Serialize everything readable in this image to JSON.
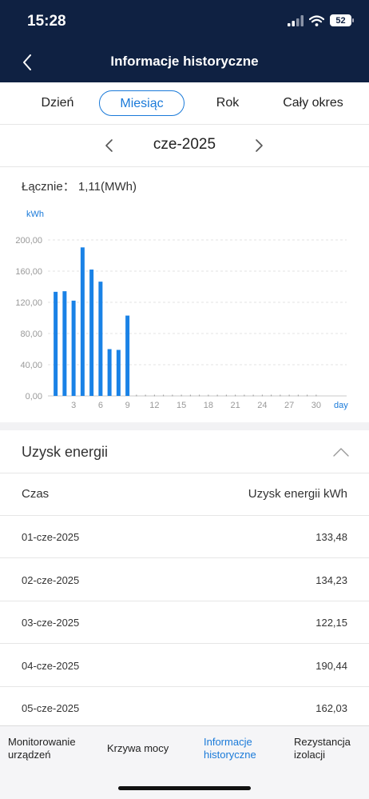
{
  "status_bar": {
    "time": "15:28",
    "battery": "52"
  },
  "header": {
    "title": "Informacje historyczne"
  },
  "tabs": [
    {
      "label": "Dzień",
      "active": false
    },
    {
      "label": "Miesiąc",
      "active": true
    },
    {
      "label": "Rok",
      "active": false
    },
    {
      "label": "Cały okres",
      "active": false
    }
  ],
  "period": {
    "label": "cze-2025"
  },
  "summary": {
    "label": "Łącznie：",
    "value": "1,11(MWh)"
  },
  "chart_data": {
    "type": "bar",
    "ylabel": "kWh",
    "xlabel": "day",
    "ylim": [
      0,
      200
    ],
    "y_ticks": [
      "0,00",
      "40,00",
      "80,00",
      "120,00",
      "160,00",
      "200,00"
    ],
    "x_ticks": [
      "3",
      "6",
      "9",
      "12",
      "15",
      "18",
      "21",
      "24",
      "27",
      "30"
    ],
    "days_in_month": 30,
    "grid": true,
    "color": "#1a82e6",
    "categories": [
      1,
      2,
      3,
      4,
      5,
      6,
      7,
      8,
      9
    ],
    "values": [
      133.48,
      134.23,
      122.15,
      190.44,
      162.03,
      146.5,
      60.0,
      59.0,
      103.0
    ]
  },
  "section": {
    "title": "Uzysk energii"
  },
  "table": {
    "headers": [
      "Czas",
      "Uzysk energii kWh"
    ],
    "rows": [
      {
        "date": "01-cze-2025",
        "value": "133,48"
      },
      {
        "date": "02-cze-2025",
        "value": "134,23"
      },
      {
        "date": "03-cze-2025",
        "value": "122,15"
      },
      {
        "date": "04-cze-2025",
        "value": "190,44"
      },
      {
        "date": "05-cze-2025",
        "value": "162,03"
      }
    ]
  },
  "bottom_nav": [
    {
      "line1": "Monitorowanie",
      "line2": "urządzeń",
      "active": false
    },
    {
      "line1": "Krzywa mocy",
      "line2": "",
      "active": false
    },
    {
      "line1": "Informacje",
      "line2": "historyczne",
      "active": true
    },
    {
      "line1": "Rezystancja",
      "line2": "izolacji",
      "active": false
    }
  ]
}
